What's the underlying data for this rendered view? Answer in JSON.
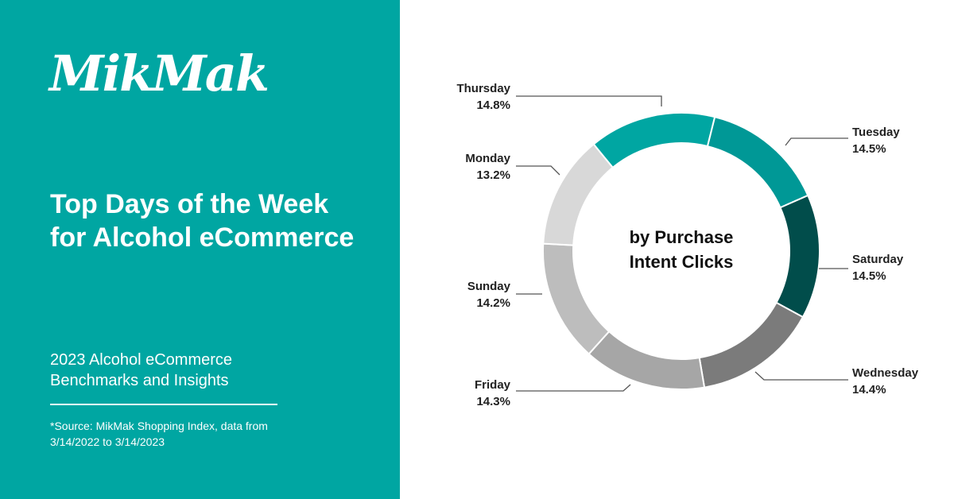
{
  "brand": {
    "logo_text": "MikMak"
  },
  "header": {
    "title": "Top Days of the Week for Alcohol eCommerce"
  },
  "report": {
    "subtitle": "2023 Alcohol eCommerce Benchmarks and Insights"
  },
  "footnote": {
    "source": "*Source: MikMak Shopping Index, data from 3/14/2022 to 3/14/2023"
  },
  "colors": {
    "panel": "#00a6a2",
    "text_light": "#ffffff",
    "leader": "#555555"
  },
  "chart_data": {
    "type": "donut",
    "center_label": [
      "by Purchase",
      "Intent Clicks"
    ],
    "unit": "%",
    "legend": "none",
    "slices": [
      {
        "label": "Tuesday",
        "value": 14.5,
        "display": "14.5%",
        "color": "#009896"
      },
      {
        "label": "Saturday",
        "value": 14.5,
        "display": "14.5%",
        "color": "#014d4b"
      },
      {
        "label": "Wednesday",
        "value": 14.4,
        "display": "14.4%",
        "color": "#7b7b7b"
      },
      {
        "label": "Friday",
        "value": 14.3,
        "display": "14.3%",
        "color": "#a6a6a6"
      },
      {
        "label": "Sunday",
        "value": 14.2,
        "display": "14.2%",
        "color": "#bdbdbd"
      },
      {
        "label": "Monday",
        "value": 13.2,
        "display": "13.2%",
        "color": "#d8d8d8"
      },
      {
        "label": "Thursday",
        "value": 14.8,
        "display": "14.8%",
        "color": "#00a6a2"
      }
    ]
  }
}
